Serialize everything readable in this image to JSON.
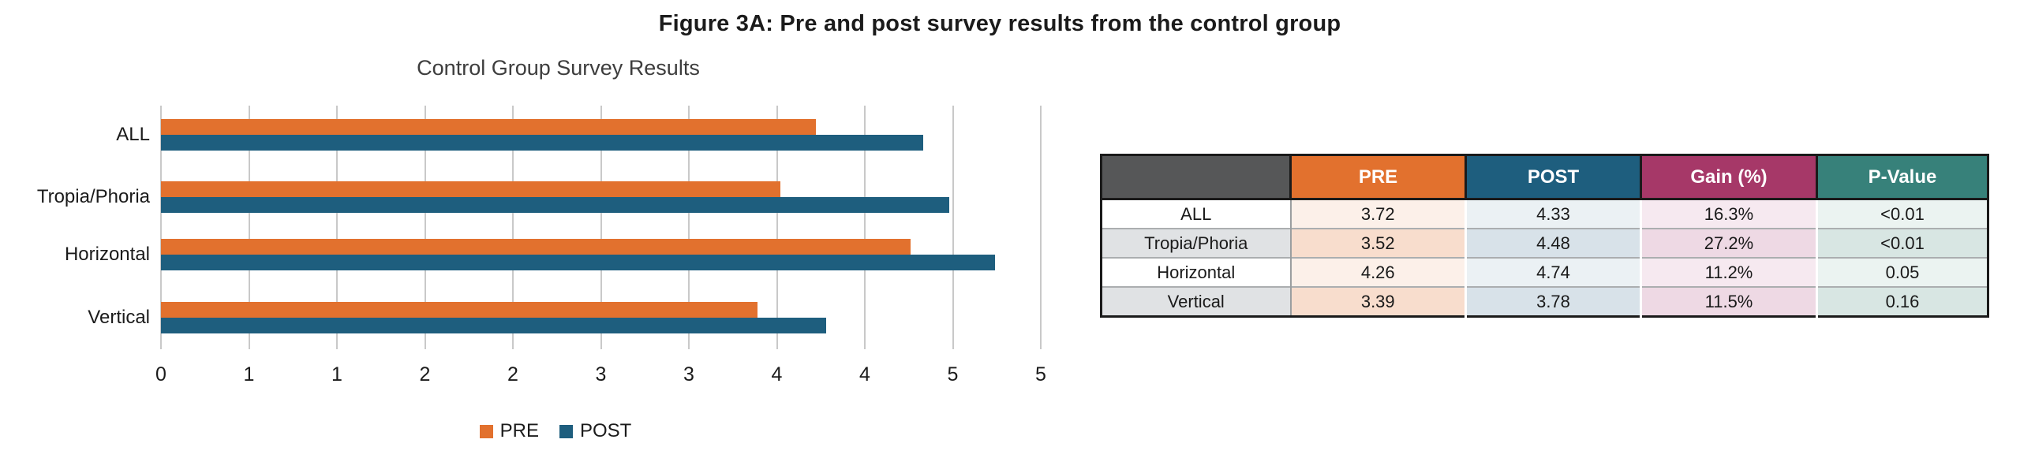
{
  "figure": {
    "title": "Figure 3A: Pre and post survey results from the control group"
  },
  "chart_data": {
    "type": "bar",
    "orientation": "horizontal",
    "title": "Control Group Survey Results",
    "categories": [
      "ALL",
      "Tropia/Phoria",
      "Horizontal",
      "Vertical"
    ],
    "series": [
      {
        "name": "PRE",
        "color": "#e2712e",
        "values": [
          3.72,
          3.52,
          4.26,
          3.39
        ]
      },
      {
        "name": "POST",
        "color": "#1e5e7e",
        "values": [
          4.33,
          4.48,
          4.74,
          3.78
        ]
      }
    ],
    "xlim": [
      0,
      5
    ],
    "x_ticks": [
      0,
      0.5,
      1,
      1.5,
      2,
      2.5,
      3,
      3.5,
      4,
      4.5,
      5
    ],
    "x_tick_labels": [
      "0",
      "1",
      "1",
      "2",
      "2",
      "3",
      "3",
      "4",
      "4",
      "5",
      "5"
    ],
    "grid": true,
    "legend_position": "bottom",
    "legend_entries": [
      "PRE",
      "POST"
    ]
  },
  "table": {
    "header": {
      "labels": [
        "",
        "PRE",
        "POST",
        "Gain (%)",
        "P-Value"
      ],
      "colors": [
        "#565758",
        "#e2712e",
        "#1e5e7e",
        "#a63868",
        "#37817a"
      ]
    },
    "rows": [
      {
        "label": "ALL",
        "pre": "3.72",
        "post": "4.33",
        "gain": "16.3%",
        "p_value": "<0.01"
      },
      {
        "label": "Tropia/Phoria",
        "pre": "3.52",
        "post": "4.48",
        "gain": "27.2%",
        "p_value": "<0.01"
      },
      {
        "label": "Horizontal",
        "pre": "4.26",
        "post": "4.74",
        "gain": "11.2%",
        "p_value": "0.05"
      },
      {
        "label": "Vertical",
        "pre": "3.39",
        "post": "3.78",
        "gain": "11.5%",
        "p_value": "0.16"
      }
    ],
    "row_tints": {
      "odd": {
        "label": "#ffffff",
        "pre": "#fcf0e9",
        "post": "#ebf1f4",
        "gain": "#f6e9f0",
        "p_value": "#ebf3f1"
      },
      "even": {
        "label": "#e0e2e4",
        "pre": "#f8ddcd",
        "post": "#d8e2e9",
        "gain": "#eed9e4",
        "p_value": "#d8e6e3"
      }
    }
  },
  "colors": {
    "pre_accent": "#e2712e",
    "post_accent": "#1e5e7e",
    "gain_accent": "#a63868",
    "pvalue_accent": "#37817a",
    "gridline": "#c9c9c9",
    "table_border": "#1a1a1a"
  }
}
